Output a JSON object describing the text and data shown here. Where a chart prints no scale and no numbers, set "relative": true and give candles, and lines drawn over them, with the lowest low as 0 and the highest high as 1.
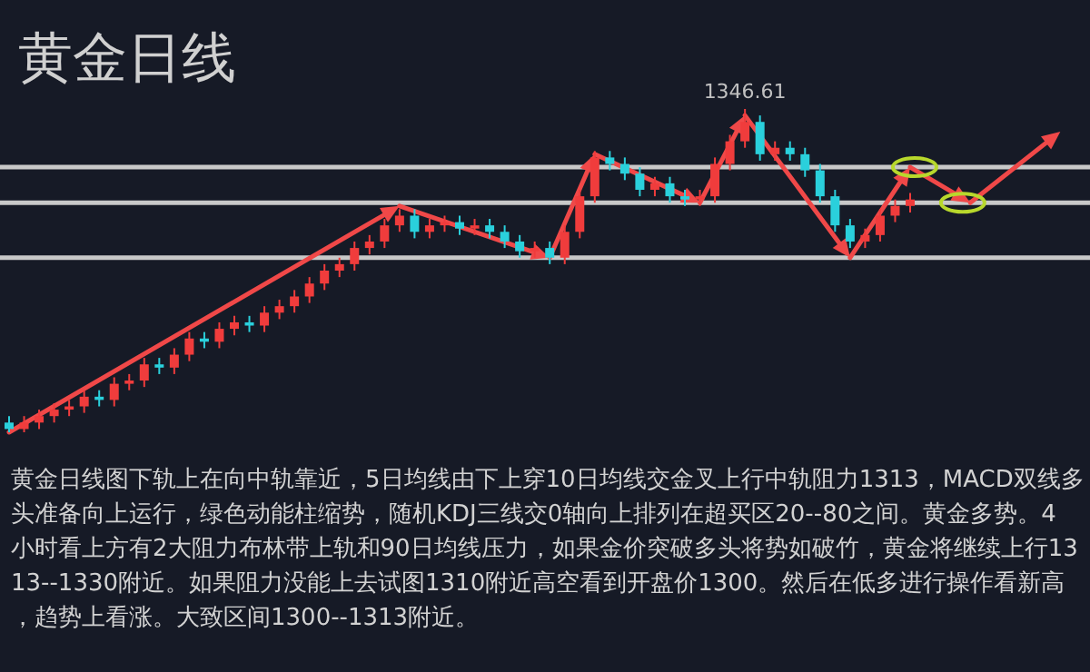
{
  "chart_data": {
    "type": "candlestick",
    "title": "黄金日线",
    "relative": true,
    "categories": [
      null,
      null,
      null,
      null,
      null,
      null,
      null,
      null,
      null,
      null,
      null,
      null,
      null,
      null,
      null,
      null,
      null,
      null,
      null,
      null,
      null,
      null,
      null,
      null,
      null,
      null,
      null,
      null,
      null,
      null,
      null,
      null,
      null,
      null,
      null,
      null,
      null,
      null,
      null,
      null,
      null,
      null,
      null,
      null,
      null,
      null,
      null,
      null,
      null,
      null,
      null,
      null,
      null,
      null,
      null,
      null,
      null,
      null,
      null,
      null,
      null
    ],
    "ohlc": [
      [
        0.03,
        0.05,
        0,
        0.01
      ],
      [
        0.01,
        0.05,
        0,
        0.03
      ],
      [
        0.03,
        0.07,
        0.01,
        0.05
      ],
      [
        0.05,
        0.09,
        0.03,
        0.07
      ],
      [
        0.07,
        0.1,
        0.05,
        0.08
      ],
      [
        0.08,
        0.13,
        0.06,
        0.11
      ],
      [
        0.11,
        0.13,
        0.08,
        0.1
      ],
      [
        0.1,
        0.17,
        0.08,
        0.15
      ],
      [
        0.15,
        0.18,
        0.13,
        0.16
      ],
      [
        0.16,
        0.23,
        0.14,
        0.21
      ],
      [
        0.21,
        0.23,
        0.18,
        0.2
      ],
      [
        0.2,
        0.26,
        0.18,
        0.24
      ],
      [
        0.24,
        0.31,
        0.22,
        0.29
      ],
      [
        0.29,
        0.31,
        0.26,
        0.28
      ],
      [
        0.28,
        0.34,
        0.26,
        0.32
      ],
      [
        0.32,
        0.36,
        0.3,
        0.34
      ],
      [
        0.34,
        0.36,
        0.31,
        0.33
      ],
      [
        0.33,
        0.39,
        0.31,
        0.37
      ],
      [
        0.37,
        0.41,
        0.35,
        0.39
      ],
      [
        0.39,
        0.44,
        0.37,
        0.42
      ],
      [
        0.42,
        0.48,
        0.4,
        0.46
      ],
      [
        0.46,
        0.52,
        0.44,
        0.5
      ],
      [
        0.5,
        0.54,
        0.48,
        0.52
      ],
      [
        0.52,
        0.59,
        0.5,
        0.57
      ],
      [
        0.57,
        0.61,
        0.55,
        0.59
      ],
      [
        0.59,
        0.66,
        0.57,
        0.64
      ],
      [
        0.64,
        0.69,
        0.62,
        0.67
      ],
      [
        0.67,
        0.69,
        0.6,
        0.62
      ],
      [
        0.62,
        0.66,
        0.6,
        0.64
      ],
      [
        0.64,
        0.67,
        0.62,
        0.65
      ],
      [
        0.65,
        0.67,
        0.61,
        0.63
      ],
      [
        0.63,
        0.66,
        0.61,
        0.64
      ],
      [
        0.64,
        0.66,
        0.6,
        0.62
      ],
      [
        0.62,
        0.64,
        0.57,
        0.59
      ],
      [
        0.59,
        0.61,
        0.54,
        0.56
      ],
      [
        0.56,
        0.59,
        0.54,
        0.57
      ],
      [
        0.57,
        0.59,
        0.52,
        0.54
      ],
      [
        0.54,
        0.64,
        0.52,
        0.62
      ],
      [
        0.62,
        0.75,
        0.6,
        0.73
      ],
      [
        0.73,
        0.87,
        0.71,
        0.85
      ],
      [
        0.85,
        0.87,
        0.81,
        0.83
      ],
      [
        0.83,
        0.85,
        0.78,
        0.8
      ],
      [
        0.8,
        0.82,
        0.73,
        0.75
      ],
      [
        0.75,
        0.79,
        0.73,
        0.77
      ],
      [
        0.77,
        0.79,
        0.71,
        0.73
      ],
      [
        0.73,
        0.75,
        0.7,
        0.72
      ],
      [
        0.72,
        0.75,
        0.7,
        0.73
      ],
      [
        0.73,
        0.85,
        0.71,
        0.83
      ],
      [
        0.83,
        0.92,
        0.81,
        0.9
      ],
      [
        0.9,
        1,
        0.88,
        0.96
      ],
      [
        0.96,
        0.98,
        0.84,
        0.86
      ],
      [
        0.86,
        0.9,
        0.84,
        0.88
      ],
      [
        0.88,
        0.9,
        0.84,
        0.86
      ],
      [
        0.86,
        0.88,
        0.79,
        0.81
      ],
      [
        0.81,
        0.83,
        0.71,
        0.73
      ],
      [
        0.73,
        0.75,
        0.62,
        0.64
      ],
      [
        0.64,
        0.66,
        0.57,
        0.59
      ],
      [
        0.59,
        0.63,
        0.57,
        0.61
      ],
      [
        0.61,
        0.69,
        0.59,
        0.67
      ],
      [
        0.67,
        0.72,
        0.65,
        0.7
      ],
      [
        0.7,
        0.74,
        0.68,
        0.72
      ]
    ],
    "colors": [
      "#2ad0dc",
      "#f03c3c",
      "#f03c3c",
      "#f03c3c",
      "#f03c3c",
      "#f03c3c",
      "#2ad0dc",
      "#f03c3c",
      "#f03c3c",
      "#f03c3c",
      "#2ad0dc",
      "#f03c3c",
      "#f03c3c",
      "#2ad0dc",
      "#f03c3c",
      "#f03c3c",
      "#2ad0dc",
      "#f03c3c",
      "#f03c3c",
      "#f03c3c",
      "#f03c3c",
      "#f03c3c",
      "#f03c3c",
      "#f03c3c",
      "#f03c3c",
      "#f03c3c",
      "#f03c3c",
      "#2ad0dc",
      "#f03c3c",
      "#f03c3c",
      "#2ad0dc",
      "#f03c3c",
      "#2ad0dc",
      "#2ad0dc",
      "#2ad0dc",
      "#f03c3c",
      "#2ad0dc",
      "#f03c3c",
      "#f03c3c",
      "#f03c3c",
      "#2ad0dc",
      "#2ad0dc",
      "#2ad0dc",
      "#f03c3c",
      "#2ad0dc",
      "#2ad0dc",
      "#f03c3c",
      "#f03c3c",
      "#f03c3c",
      "#f03c3c",
      "#2ad0dc",
      "#f03c3c",
      "#2ad0dc",
      "#2ad0dc",
      "#2ad0dc",
      "#2ad0dc",
      "#2ad0dc",
      "#f03c3c",
      "#f03c3c",
      "#f03c3c",
      "#f03c3c"
    ],
    "ref_lines": [
      {
        "axis": "y",
        "value": 0.82,
        "color": "#c8c8c8"
      },
      {
        "axis": "y",
        "value": 0.71,
        "color": "#c8c8c8"
      },
      {
        "axis": "y",
        "value": 0.54,
        "color": "#c8c8c8"
      }
    ],
    "annotations": [
      {
        "text": "1346.61",
        "y": 1
      },
      "黄金日线图下轨上在向中轨靠近，5日均线由下上穿10日均线交金叉上行中轨阻力1313，MACD双线多头准备向上运行，绿色动能柱缩势，随机KDJ三线交0轴向上排列在超买区20--80之间。黄金多势。4小时看上方有2大阻力布林带上轨和90日均线压力，如果金价突破多头将势如破竹，黄金将继续上行1313--1330附近。如果阻力没能上去试图1310附近高空看到开盘价1300。然后在低多进行操作看新高，趋势上看涨。大致区间1300--1313附近。"
    ]
  }
}
